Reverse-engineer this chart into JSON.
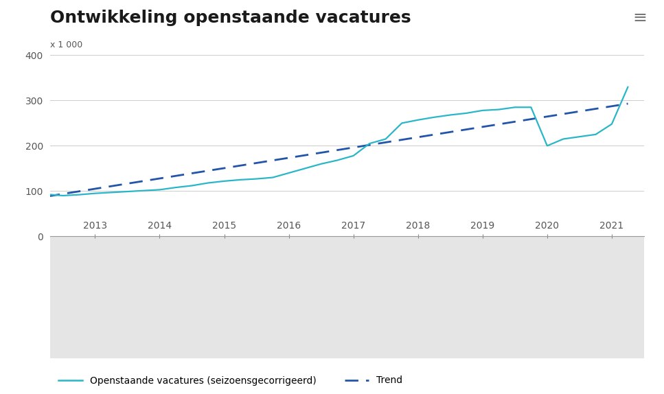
{
  "title": "Ontwikkeling openstaande vacatures",
  "ylabel": "x 1 000",
  "ylim": [
    0,
    400
  ],
  "yticks": [
    0,
    100,
    200,
    300,
    400
  ],
  "background_color": "#ffffff",
  "plot_bg_color": "#ffffff",
  "footer_bg_color": "#e5e5e5",
  "grid_color": "#cccccc",
  "line_color": "#29b6c8",
  "trend_color": "#2255aa",
  "title_fontsize": 18,
  "tick_fontsize": 10,
  "vacatures_x": [
    2012.25,
    2012.5,
    2012.75,
    2013.0,
    2013.25,
    2013.5,
    2013.75,
    2014.0,
    2014.25,
    2014.5,
    2014.75,
    2015.0,
    2015.25,
    2015.5,
    2015.75,
    2016.0,
    2016.25,
    2016.5,
    2016.75,
    2017.0,
    2017.25,
    2017.5,
    2017.75,
    2018.0,
    2018.25,
    2018.5,
    2018.75,
    2019.0,
    2019.25,
    2019.5,
    2019.75,
    2020.0,
    2020.25,
    2020.5,
    2020.75,
    2021.0,
    2021.25
  ],
  "vacatures_y": [
    93,
    90,
    92,
    95,
    97,
    99,
    101,
    103,
    108,
    112,
    118,
    122,
    125,
    127,
    130,
    140,
    150,
    160,
    168,
    178,
    205,
    215,
    250,
    257,
    263,
    268,
    272,
    278,
    280,
    285,
    285,
    200,
    215,
    220,
    225,
    248,
    330
  ],
  "trend_x": [
    2012.25,
    2021.25
  ],
  "trend_y": [
    88,
    293
  ],
  "xmin": 2012.3,
  "xmax": 2021.5,
  "xtick_positions": [
    2013,
    2014,
    2015,
    2016,
    2017,
    2018,
    2019,
    2020,
    2021
  ],
  "xtick_labels": [
    "2013",
    "2014",
    "2015",
    "2016",
    "2017",
    "2018",
    "2019",
    "2020",
    "2021"
  ],
  "legend_line_label": "Openstaande vacatures (seizoensgecorrigeerd)",
  "legend_trend_label": "Trend"
}
